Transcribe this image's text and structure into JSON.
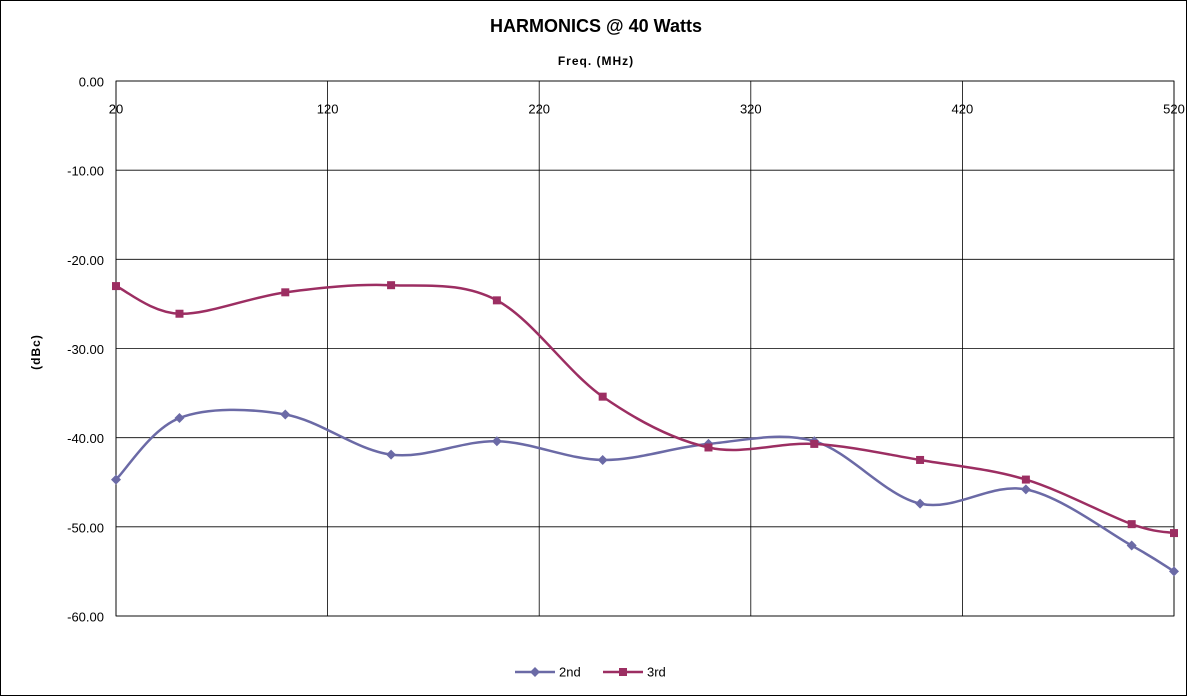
{
  "chart_data": {
    "type": "line",
    "title": "HARMONICS @ 40 Watts",
    "x_label": "Freq. (MHz)",
    "y_label": "(dBc)",
    "x": [
      20,
      50,
      100,
      150,
      200,
      250,
      300,
      350,
      400,
      450,
      500,
      520
    ],
    "series": [
      {
        "name": "2nd",
        "color": "#6b6aa6",
        "marker": "diamond",
        "values": [
          -44.7,
          -37.8,
          -37.4,
          -41.9,
          -40.4,
          -42.5,
          -40.7,
          -40.4,
          -47.4,
          -45.8,
          -52.1,
          -55.0
        ]
      },
      {
        "name": "3rd",
        "color": "#9c2e62",
        "marker": "square",
        "values": [
          -23.0,
          -26.1,
          -23.7,
          -22.9,
          -24.6,
          -35.4,
          -41.1,
          -40.7,
          -42.5,
          -44.7,
          -49.7,
          -50.7
        ]
      }
    ],
    "xlim": [
      20,
      520
    ],
    "xticks": [
      20,
      120,
      220,
      320,
      420,
      520
    ],
    "ylim": [
      -60,
      0
    ],
    "yticks": [
      {
        "value": 0,
        "label": "0.00"
      },
      {
        "value": -10,
        "label": "-10.00"
      },
      {
        "value": -20,
        "label": "-20.00"
      },
      {
        "value": -30,
        "label": "-30.00"
      },
      {
        "value": -40,
        "label": "-40.00"
      },
      {
        "value": -50,
        "label": "-50.00"
      },
      {
        "value": -60,
        "label": "-60.00"
      }
    ],
    "grid": true,
    "legend": "bottom"
  }
}
